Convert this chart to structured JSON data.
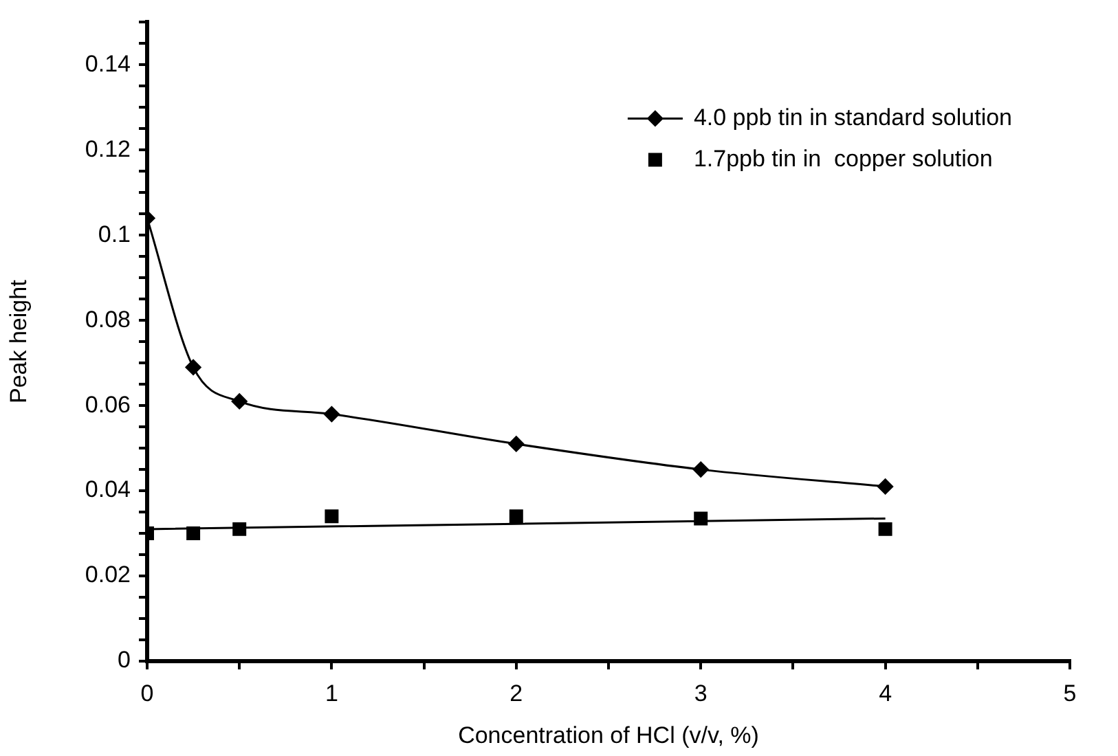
{
  "chart_data": {
    "type": "line",
    "xlabel": "Concentration of HCl (v/v, %)",
    "ylabel": "Peak height",
    "xlim": [
      0,
      5
    ],
    "xticks": [
      0,
      {
        "value": 0.5,
        "label": null
      },
      1,
      {
        "value": 1.5,
        "label": null
      },
      2,
      {
        "value": 2.5,
        "label": null
      },
      3,
      {
        "value": 3.5,
        "label": null
      },
      4,
      {
        "value": 4.5,
        "label": null
      },
      5
    ],
    "ylim": [
      0,
      0.15
    ],
    "yticks": [
      0,
      {
        "value": 0.005,
        "label": null
      },
      {
        "value": 0.01,
        "label": null
      },
      {
        "value": 0.015,
        "label": null
      },
      0.02,
      {
        "value": 0.025,
        "label": null
      },
      {
        "value": 0.03,
        "label": null
      },
      {
        "value": 0.035,
        "label": null
      },
      0.04,
      {
        "value": 0.045,
        "label": null
      },
      {
        "value": 0.05,
        "label": null
      },
      {
        "value": 0.055,
        "label": null
      },
      0.06,
      {
        "value": 0.065,
        "label": null
      },
      {
        "value": 0.07,
        "label": null
      },
      {
        "value": 0.075,
        "label": null
      },
      0.08,
      {
        "value": 0.085,
        "label": null
      },
      {
        "value": 0.09,
        "label": null
      },
      {
        "value": 0.095,
        "label": null
      },
      0.1,
      {
        "value": 0.105,
        "label": null
      },
      {
        "value": 0.11,
        "label": null
      },
      {
        "value": 0.115,
        "label": null
      },
      0.12,
      {
        "value": 0.125,
        "label": null
      },
      {
        "value": 0.13,
        "label": null
      },
      {
        "value": 0.135,
        "label": null
      },
      0.14,
      {
        "value": 0.145,
        "label": null
      },
      {
        "value": 0.15,
        "label": null
      }
    ],
    "grid": false,
    "legend": "top right",
    "series": [
      {
        "name": "4.0 ppb tin in standard solution",
        "marker": "diamond",
        "color": "#000000",
        "x": [
          0,
          0.25,
          0.5,
          1,
          2,
          3,
          4
        ],
        "values": [
          0.104,
          0.069,
          0.061,
          0.058,
          0.051,
          0.045,
          0.041
        ]
      },
      {
        "name": "1.7ppb tin in  copper solution",
        "type": "scatter",
        "marker": "square",
        "color": "#000000",
        "x": [
          0,
          0.25,
          0.5,
          1,
          2,
          3,
          4
        ],
        "values": [
          0.03,
          0.03,
          0.031,
          0.034,
          0.034,
          0.0335,
          0.031
        ]
      },
      {
        "marker": "none",
        "color": "#000000",
        "x": [
          0,
          4
        ],
        "values": [
          0.031,
          0.0335
        ]
      }
    ]
  }
}
